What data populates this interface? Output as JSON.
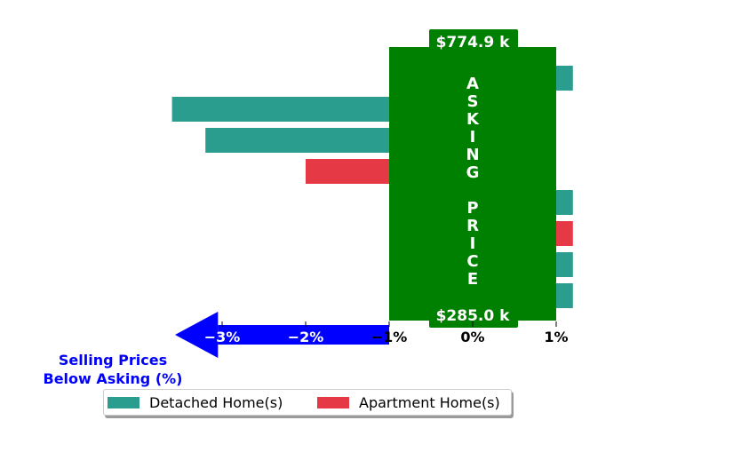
{
  "chart_data": {
    "type": "bar",
    "orientation": "horizontal",
    "series": [
      {
        "name": "Detached Home(s)",
        "color": "#2a9d8f"
      },
      {
        "name": "Apartment Home(s)",
        "color": "#e63946"
      }
    ],
    "bars": [
      {
        "series": "Detached Home(s)",
        "value": 1.2
      },
      {
        "series": "Detached Home(s)",
        "value": -3.6
      },
      {
        "series": "Detached Home(s)",
        "value": -3.2
      },
      {
        "series": "Apartment Home(s)",
        "value": -2.0
      },
      {
        "series": "Detached Home(s)",
        "value": 1.2
      },
      {
        "series": "Apartment Home(s)",
        "value": 1.2
      },
      {
        "series": "Detached Home(s)",
        "value": 1.2
      },
      {
        "series": "Detached Home(s)",
        "value": 1.2
      }
    ],
    "xlim": [
      -3.6,
      1.2
    ],
    "xticks": [
      -3,
      -2,
      -1,
      0,
      1
    ],
    "xtick_labels": [
      "−3%",
      "−2%",
      "−1%",
      "0%",
      "1%"
    ],
    "asking_band": {
      "from": -1,
      "to": 1,
      "color": "#008000",
      "label": "ASKING PRICE"
    },
    "top_price_label": "$774.9 k",
    "bottom_price_label": "$285.0 k",
    "below_asking_annotation": "Selling Prices\nBelow Asking (%)",
    "annotation_color": "#0000ff",
    "legend_placement": "bottom-left"
  }
}
